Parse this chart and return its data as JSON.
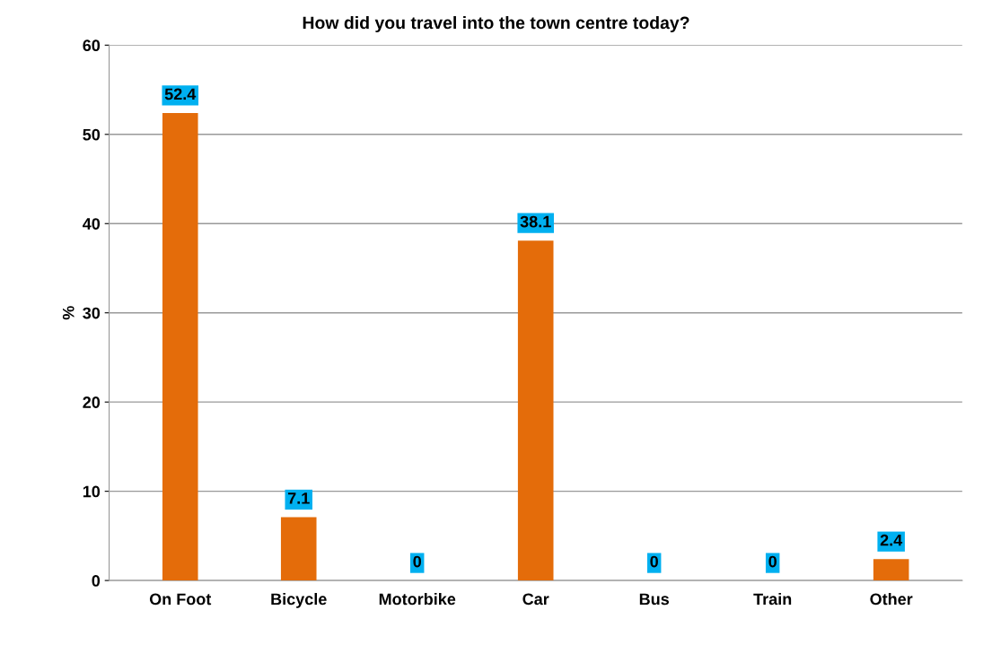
{
  "chart_data": {
    "type": "bar",
    "title": "How did you travel into the town centre today?",
    "ylabel": "%",
    "categories": [
      "On Foot",
      "Bicycle",
      "Motorbike",
      "Car",
      "Bus",
      "Train",
      "Other"
    ],
    "values": [
      52.4,
      7.1,
      0,
      38.1,
      0,
      0,
      2.4
    ],
    "color": "#e46c0a",
    "ylim": [
      0,
      60
    ],
    "yticks": [
      0,
      10,
      20,
      30,
      40,
      50,
      60
    ],
    "grid": "y",
    "data_labels": true
  }
}
